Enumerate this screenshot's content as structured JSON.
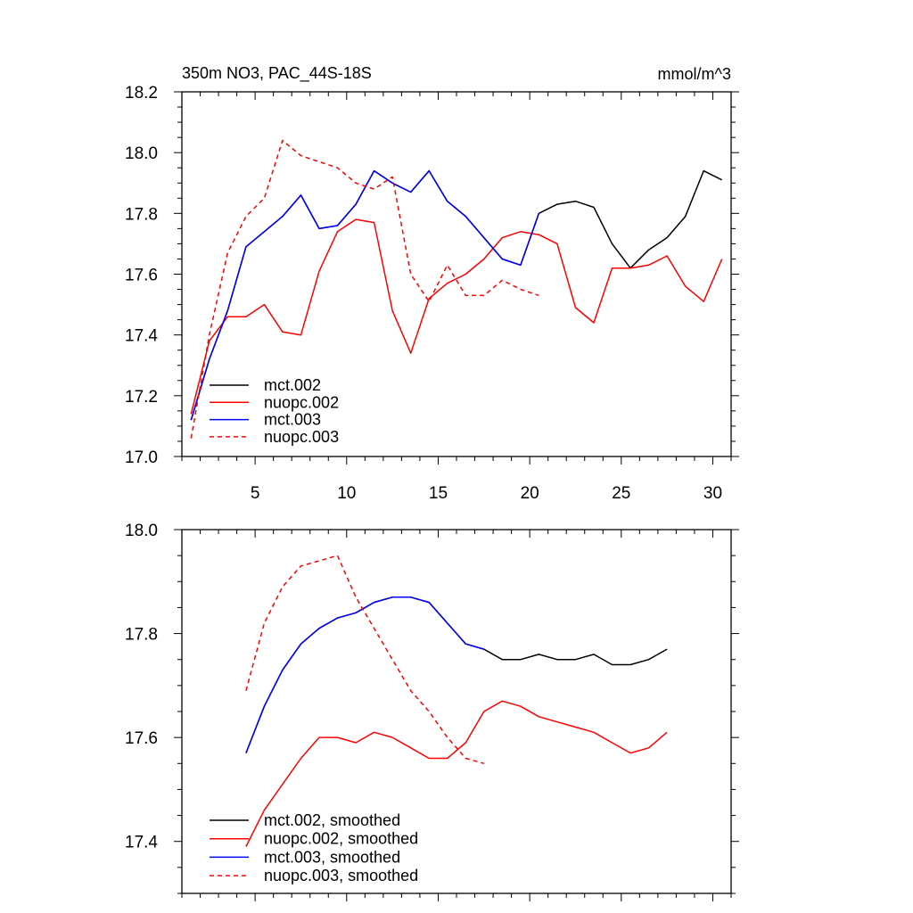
{
  "chart_data": [
    {
      "type": "line",
      "title": "350m NO3, PAC_44S-18S",
      "units": "mmol/m^3",
      "xlabel": "",
      "ylabel": "",
      "xlim": [
        1,
        31
      ],
      "ylim": [
        17.0,
        18.2
      ],
      "x_ticks": [
        5,
        10,
        15,
        20,
        25,
        30
      ],
      "y_ticks": [
        17.0,
        17.2,
        17.4,
        17.6,
        17.8,
        18.0,
        18.2
      ],
      "y_tick_labels": [
        "17.0",
        "17.2",
        "17.4",
        "17.6",
        "17.8",
        "18.0",
        "18.2"
      ],
      "legend_position": "bottom-left",
      "series": [
        {
          "name": "mct.002",
          "color": "#000000",
          "dash": "solid",
          "x": [
            1.5,
            2.5,
            3.5,
            4.5,
            5.5,
            6.5,
            7.5,
            8.5,
            9.5,
            10.5,
            11.5,
            12.5,
            13.5,
            14.5,
            15.5,
            16.5,
            17.5,
            18.5,
            19.5,
            20.5,
            21.5,
            22.5,
            23.5,
            24.5,
            25.5,
            26.5,
            27.5,
            28.5,
            29.5,
            30.5
          ],
          "values": [
            17.12,
            17.32,
            17.48,
            17.69,
            17.74,
            17.79,
            17.86,
            17.75,
            17.76,
            17.83,
            17.94,
            17.9,
            17.87,
            17.94,
            17.84,
            17.79,
            17.72,
            17.65,
            17.63,
            17.8,
            17.83,
            17.84,
            17.82,
            17.7,
            17.62,
            17.68,
            17.72,
            17.79,
            17.94,
            17.91
          ]
        },
        {
          "name": "nuopc.002",
          "color": "#ff0000",
          "dash": "solid",
          "x": [
            1.5,
            2.5,
            3.5,
            4.5,
            5.5,
            6.5,
            7.5,
            8.5,
            9.5,
            10.5,
            11.5,
            12.5,
            13.5,
            14.5,
            15.5,
            16.5,
            17.5,
            18.5,
            19.5,
            20.5,
            21.5,
            22.5,
            23.5,
            24.5,
            25.5,
            26.5,
            27.5,
            28.5,
            29.5,
            30.5
          ],
          "values": [
            17.14,
            17.38,
            17.46,
            17.46,
            17.5,
            17.41,
            17.4,
            17.61,
            17.74,
            17.78,
            17.77,
            17.48,
            17.34,
            17.52,
            17.57,
            17.6,
            17.65,
            17.72,
            17.74,
            17.73,
            17.7,
            17.49,
            17.44,
            17.62,
            17.62,
            17.63,
            17.66,
            17.56,
            17.51,
            17.65
          ]
        },
        {
          "name": "mct.003",
          "color": "#0000ff",
          "dash": "solid",
          "x": [
            1.5,
            2.5,
            3.5,
            4.5,
            5.5,
            6.5,
            7.5,
            8.5,
            9.5,
            10.5,
            11.5,
            12.5,
            13.5,
            14.5,
            15.5,
            16.5,
            17.5,
            18.5,
            19.5,
            20.5
          ],
          "values": [
            17.12,
            17.32,
            17.48,
            17.69,
            17.74,
            17.79,
            17.86,
            17.75,
            17.76,
            17.83,
            17.94,
            17.9,
            17.87,
            17.94,
            17.84,
            17.79,
            17.72,
            17.65,
            17.63,
            17.8
          ]
        },
        {
          "name": "nuopc.003",
          "color": "#ff0000",
          "dash": "dashed",
          "x": [
            1.5,
            2.5,
            3.5,
            4.5,
            5.5,
            6.5,
            7.5,
            8.5,
            9.5,
            10.5,
            11.5,
            12.5,
            13.5,
            14.5,
            15.5,
            16.5,
            17.5,
            18.5,
            19.5,
            20.5
          ],
          "values": [
            17.06,
            17.4,
            17.67,
            17.79,
            17.85,
            18.04,
            17.99,
            17.97,
            17.95,
            17.9,
            17.88,
            17.92,
            17.6,
            17.51,
            17.63,
            17.53,
            17.53,
            17.58,
            17.55,
            17.53
          ]
        }
      ]
    },
    {
      "type": "line",
      "title": "",
      "xlabel": "",
      "ylabel": "",
      "xlim": [
        1,
        31
      ],
      "ylim": [
        17.3,
        18.0
      ],
      "x_ticks": [
        5,
        10,
        15,
        20,
        25,
        30
      ],
      "y_ticks": [
        17.4,
        17.6,
        17.8,
        18.0
      ],
      "y_tick_labels": [
        "17.4",
        "17.6",
        "17.8",
        "18.0"
      ],
      "legend_position": "bottom-left",
      "series": [
        {
          "name": "mct.002, smoothed",
          "color": "#000000",
          "dash": "solid",
          "x": [
            4.5,
            5.5,
            6.5,
            7.5,
            8.5,
            9.5,
            10.5,
            11.5,
            12.5,
            13.5,
            14.5,
            15.5,
            16.5,
            17.5,
            18.5,
            19.5,
            20.5,
            21.5,
            22.5,
            23.5,
            24.5,
            25.5,
            26.5,
            27.5
          ],
          "values": [
            17.57,
            17.66,
            17.73,
            17.78,
            17.81,
            17.83,
            17.84,
            17.86,
            17.87,
            17.87,
            17.86,
            17.82,
            17.78,
            17.77,
            17.75,
            17.75,
            17.76,
            17.75,
            17.75,
            17.76,
            17.74,
            17.74,
            17.75,
            17.77
          ]
        },
        {
          "name": "nuopc.002, smoothed",
          "color": "#ff0000",
          "dash": "solid",
          "x": [
            4.5,
            5.5,
            6.5,
            7.5,
            8.5,
            9.5,
            10.5,
            11.5,
            12.5,
            13.5,
            14.5,
            15.5,
            16.5,
            17.5,
            18.5,
            19.5,
            20.5,
            21.5,
            22.5,
            23.5,
            24.5,
            25.5,
            26.5,
            27.5
          ],
          "values": [
            17.39,
            17.46,
            17.51,
            17.56,
            17.6,
            17.6,
            17.59,
            17.61,
            17.6,
            17.58,
            17.56,
            17.56,
            17.59,
            17.65,
            17.67,
            17.66,
            17.64,
            17.63,
            17.62,
            17.61,
            17.59,
            17.57,
            17.58,
            17.61
          ]
        },
        {
          "name": "mct.003, smoothed",
          "color": "#0000ff",
          "dash": "solid",
          "x": [
            4.5,
            5.5,
            6.5,
            7.5,
            8.5,
            9.5,
            10.5,
            11.5,
            12.5,
            13.5,
            14.5,
            15.5,
            16.5,
            17.5
          ],
          "values": [
            17.57,
            17.66,
            17.73,
            17.78,
            17.81,
            17.83,
            17.84,
            17.86,
            17.87,
            17.87,
            17.86,
            17.82,
            17.78,
            17.77
          ]
        },
        {
          "name": "nuopc.003, smoothed",
          "color": "#ff0000",
          "dash": "dashed",
          "x": [
            4.5,
            5.5,
            6.5,
            7.5,
            8.5,
            9.5,
            10.5,
            11.5,
            12.5,
            13.5,
            14.5,
            15.5,
            16.5,
            17.5
          ],
          "values": [
            17.69,
            17.82,
            17.89,
            17.93,
            17.94,
            17.95,
            17.87,
            17.81,
            17.75,
            17.69,
            17.65,
            17.6,
            17.56,
            17.55
          ]
        }
      ]
    }
  ]
}
